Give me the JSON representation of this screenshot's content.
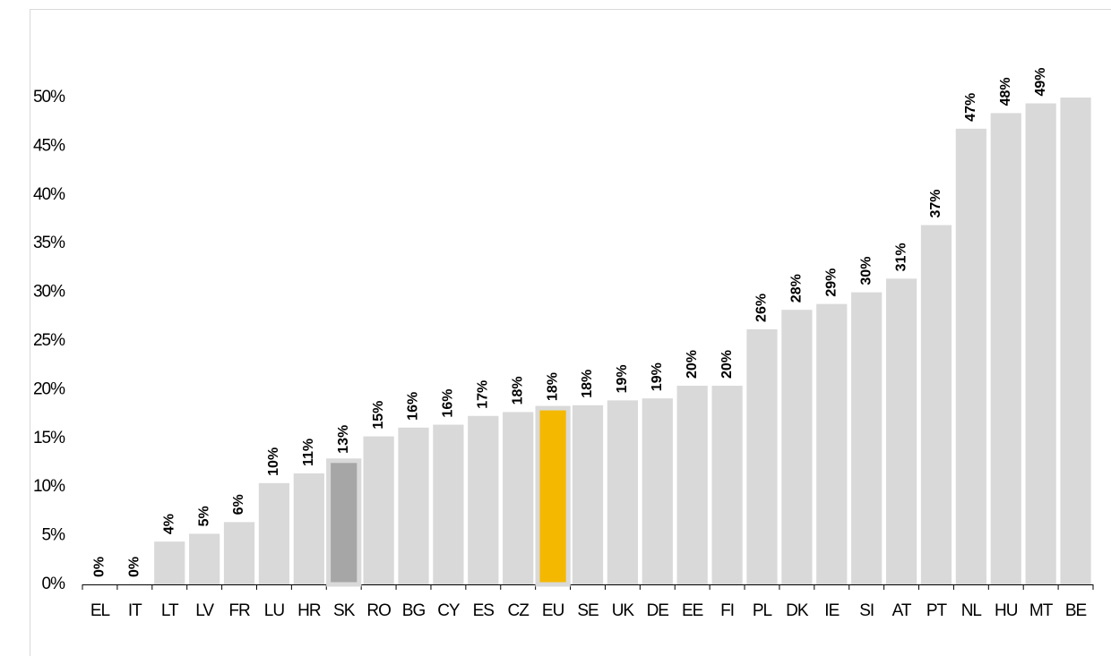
{
  "chart_data": {
    "type": "bar",
    "categories": [
      "EL",
      "IT",
      "LT",
      "LV",
      "FR",
      "LU",
      "HR",
      "SK",
      "RO",
      "BG",
      "CY",
      "ES",
      "CZ",
      "EU",
      "SE",
      "UK",
      "DE",
      "EE",
      "FI",
      "PL",
      "DK",
      "IE",
      "SI",
      "AT",
      "PT",
      "NL",
      "HU",
      "MT",
      "BE"
    ],
    "values": [
      0,
      0,
      4.4,
      5.2,
      6.4,
      10.4,
      11.4,
      12.7,
      15.2,
      16.1,
      16.4,
      17.3,
      17.7,
      18.1,
      18.4,
      18.9,
      19.1,
      20.4,
      20.4,
      26.2,
      28.2,
      28.8,
      30.0,
      31.4,
      36.9,
      46.8,
      48.4,
      49.4,
      50
    ],
    "value_labels": [
      "0%",
      "0%",
      "4%",
      "5%",
      "6%",
      "10%",
      "11%",
      "13%",
      "15%",
      "16%",
      "16%",
      "17%",
      "18%",
      "18%",
      "18%",
      "19%",
      "19%",
      "20%",
      "20%",
      "26%",
      "28%",
      "29%",
      "30%",
      "31%",
      "37%",
      "47%",
      "48%",
      "49%",
      null
    ],
    "color": "#d9d9d9",
    "colors": [
      "#d9d9d9",
      "#d9d9d9",
      "#d9d9d9",
      "#d9d9d9",
      "#d9d9d9",
      "#d9d9d9",
      "#d9d9d9",
      "#a6a6a6",
      "#d9d9d9",
      "#d9d9d9",
      "#d9d9d9",
      "#d9d9d9",
      "#d9d9d9",
      "#f5b800",
      "#d9d9d9",
      "#d9d9d9",
      "#d9d9d9",
      "#d9d9d9",
      "#d9d9d9",
      "#d9d9d9",
      "#d9d9d9",
      "#d9d9d9",
      "#d9d9d9",
      "#d9d9d9",
      "#d9d9d9",
      "#d9d9d9",
      "#d9d9d9",
      "#d9d9d9",
      "#d9d9d9"
    ],
    "ylim": [
      0,
      50
    ],
    "yticks": [
      {
        "value": 0,
        "label": "0%"
      },
      {
        "value": 5,
        "label": "5%"
      },
      {
        "value": 10,
        "label": "10%"
      },
      {
        "value": 15,
        "label": "15%"
      },
      {
        "value": 20,
        "label": "20%"
      },
      {
        "value": 25,
        "label": "25%"
      },
      {
        "value": 30,
        "label": "30%"
      },
      {
        "value": 35,
        "label": "35%"
      },
      {
        "value": 40,
        "label": "40%"
      },
      {
        "value": 45,
        "label": "45%"
      },
      {
        "value": 50,
        "label": "50%"
      }
    ],
    "grid": false
  }
}
